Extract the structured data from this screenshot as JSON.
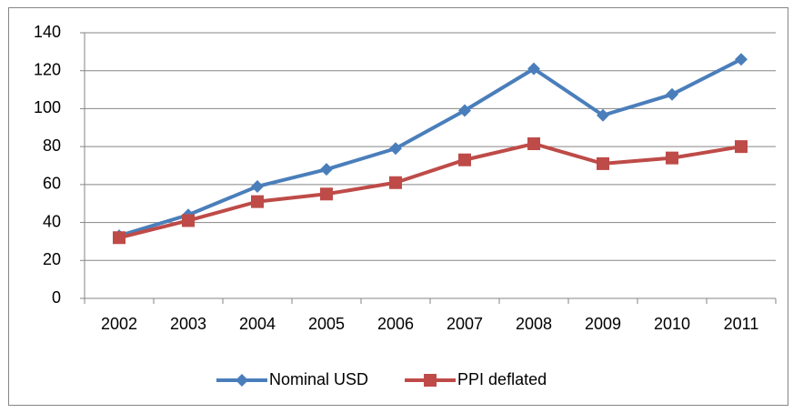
{
  "chart_data": {
    "type": "line",
    "categories": [
      "2002",
      "2003",
      "2004",
      "2005",
      "2006",
      "2007",
      "2008",
      "2009",
      "2010",
      "2011"
    ],
    "series": [
      {
        "name": "Nominal USD",
        "color": "#4a7ebb",
        "marker": "diamond",
        "values": [
          33,
          44,
          59,
          68,
          79,
          99,
          121,
          96.5,
          107.5,
          126
        ]
      },
      {
        "name": "PPI deflated",
        "color": "#be4b48",
        "marker": "square",
        "values": [
          32,
          41,
          51,
          55,
          61,
          73,
          81.5,
          71,
          74,
          80
        ]
      }
    ],
    "ylim": [
      0,
      140
    ],
    "yticks": [
      0,
      20,
      40,
      60,
      80,
      100,
      120,
      140
    ],
    "grid": true,
    "legend": "bottom"
  }
}
